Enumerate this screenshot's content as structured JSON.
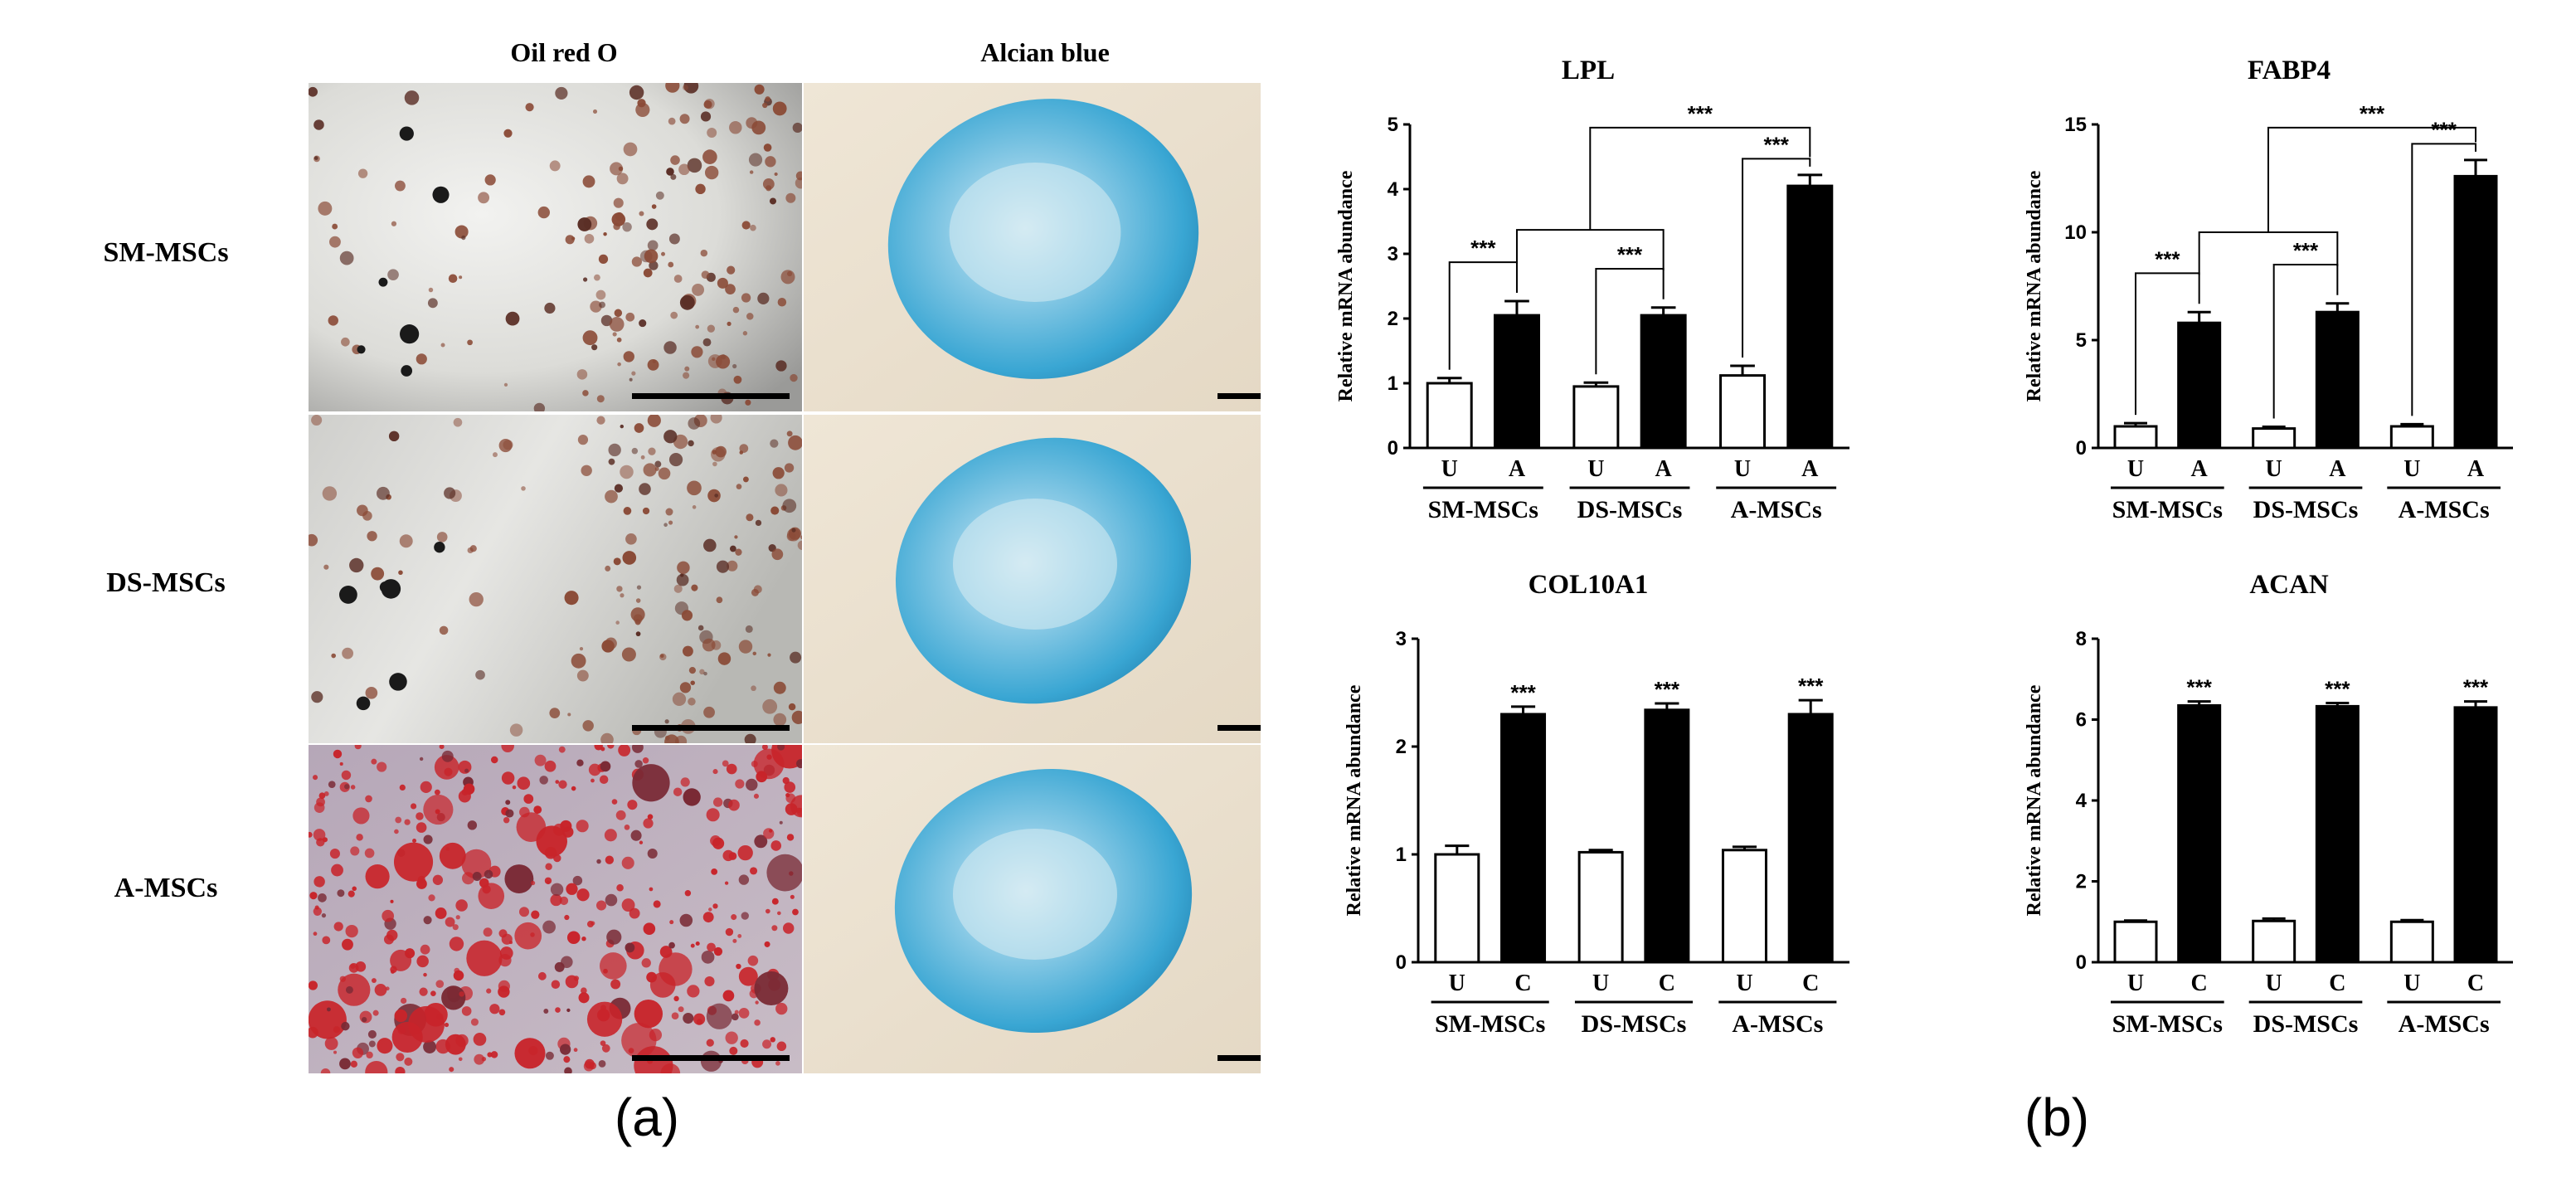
{
  "panel_a": {
    "label": "(a)",
    "columns": [
      "Oil red O",
      "Alcian blue"
    ],
    "rows": [
      "SM-MSCs",
      "DS-MSCs",
      "A-MSCs"
    ]
  },
  "panel_b": {
    "label": "(b)"
  },
  "colors": {
    "unstained_bar": "#ffffff",
    "stained_bar": "#000000",
    "oil_red": "#c8242a",
    "alcian_blue": "#3aa7d2"
  },
  "chart_data": [
    {
      "type": "bar",
      "title": "LPL",
      "ylabel": "Relative mRNA abundance",
      "ylim": [
        0,
        5
      ],
      "yticks": [
        "0",
        "1",
        "2",
        "3",
        "4",
        "5"
      ],
      "groups": [
        "SM-MSCs",
        "DS-MSCs",
        "A-MSCs"
      ],
      "categories": [
        "U",
        "A",
        "U",
        "A",
        "U",
        "A"
      ],
      "values": [
        1.0,
        2.05,
        0.95,
        2.05,
        1.12,
        4.05
      ],
      "errors": [
        0.08,
        0.22,
        0.06,
        0.12,
        0.15,
        0.17
      ],
      "significance": "***"
    },
    {
      "type": "bar",
      "title": "FABP4",
      "ylabel": "Relative mRNA abundance",
      "ylim": [
        0,
        15
      ],
      "yticks": [
        "0",
        "5",
        "10",
        "15"
      ],
      "groups": [
        "SM-MSCs",
        "DS-MSCs",
        "A-MSCs"
      ],
      "categories": [
        "U",
        "A",
        "U",
        "A",
        "U",
        "A"
      ],
      "values": [
        1.0,
        5.8,
        0.9,
        6.3,
        1.0,
        12.6
      ],
      "errors": [
        0.15,
        0.5,
        0.08,
        0.4,
        0.1,
        0.75
      ],
      "significance": "***"
    },
    {
      "type": "bar",
      "title": "COL10A1",
      "ylabel": "Relative mRNA abundance",
      "ylim": [
        0,
        3
      ],
      "yticks": [
        "0",
        "1",
        "2",
        "3"
      ],
      "groups": [
        "SM-MSCs",
        "DS-MSCs",
        "A-MSCs"
      ],
      "categories": [
        "U",
        "C",
        "U",
        "C",
        "U",
        "C"
      ],
      "values": [
        1.0,
        2.3,
        1.02,
        2.34,
        1.04,
        2.3
      ],
      "errors": [
        0.08,
        0.07,
        0.02,
        0.06,
        0.03,
        0.13
      ],
      "significance": "***"
    },
    {
      "type": "bar",
      "title": "ACAN",
      "ylabel": "Relative mRNA abundance",
      "ylim": [
        0,
        8
      ],
      "yticks": [
        "0",
        "2",
        "4",
        "6",
        "8"
      ],
      "groups": [
        "SM-MSCs",
        "DS-MSCs",
        "A-MSCs"
      ],
      "categories": [
        "U",
        "C",
        "U",
        "C",
        "U",
        "C"
      ],
      "values": [
        1.0,
        6.35,
        1.02,
        6.33,
        1.0,
        6.3
      ],
      "errors": [
        0.03,
        0.1,
        0.06,
        0.08,
        0.04,
        0.15
      ],
      "significance": "***"
    }
  ]
}
